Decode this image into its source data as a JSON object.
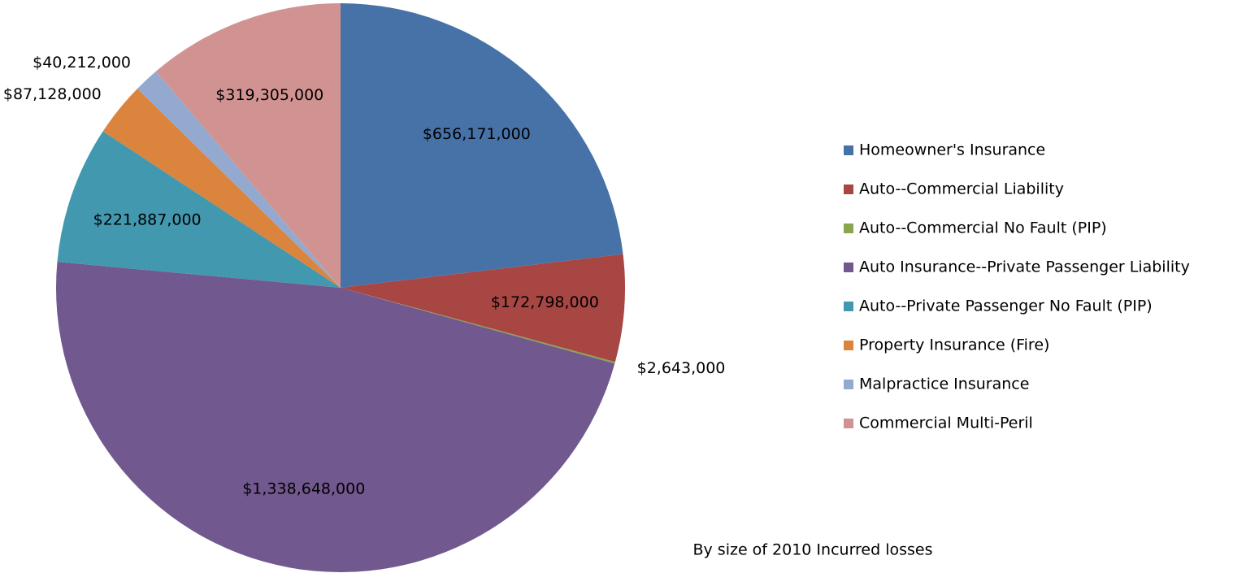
{
  "chart_data": {
    "type": "pie",
    "annotation": "By size of 2010 Incurred losses",
    "categories": [
      "Homeowner's Insurance",
      "Auto--Commercial Liability",
      "Auto--Commercial No Fault (PIP)",
      "Auto Insurance--Private Passenger Liability",
      "Auto--Private Passenger No Fault (PIP)",
      "Property Insurance (Fire)",
      "Malpractice Insurance",
      "Commercial Multi-Peril"
    ],
    "values": [
      656171000,
      172798000,
      2643000,
      1338648000,
      221887000,
      87128000,
      40212000,
      319305000
    ],
    "value_labels": [
      "$656,171,000",
      "$172,798,000",
      "$2,643,000",
      "$1,338,648,000",
      "$221,887,000",
      "$87,128,000",
      "$40,212,000",
      "$319,305,000"
    ],
    "colors": [
      "#4672a8",
      "#a84644",
      "#89a54e",
      "#71588f",
      "#4198af",
      "#db843d",
      "#93a9cf",
      "#d19392"
    ],
    "legend": "right"
  }
}
